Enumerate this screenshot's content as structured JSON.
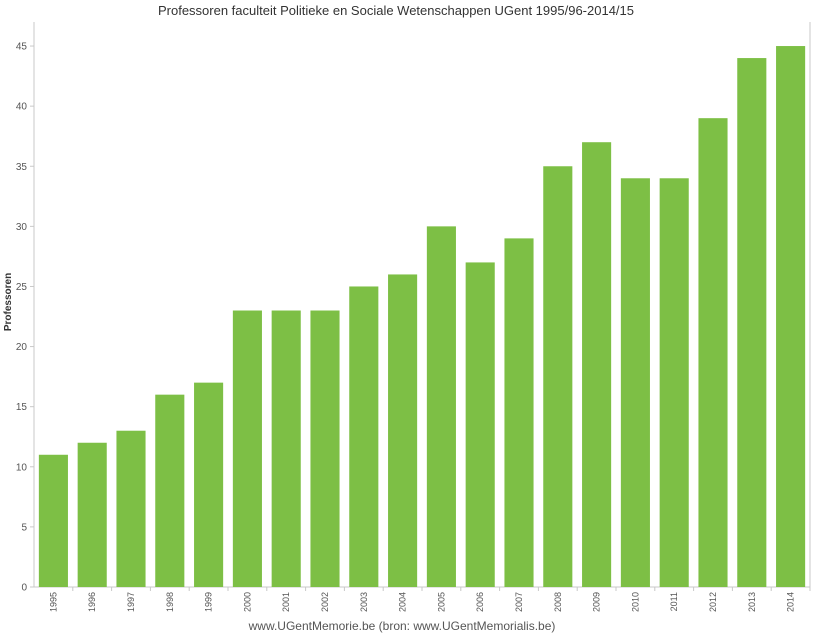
{
  "chart_data": {
    "type": "bar",
    "title": "Professoren faculteit Politieke en Sociale Wetenschappen UGent 1995/96-2014/15",
    "ylabel": "Professoren",
    "xlabel": "",
    "categories": [
      "1995",
      "1996",
      "1997",
      "1998",
      "1999",
      "2000",
      "2001",
      "2002",
      "2003",
      "2004",
      "2005",
      "2006",
      "2007",
      "2008",
      "2009",
      "2010",
      "2011",
      "2012",
      "2013",
      "2014"
    ],
    "values": [
      11,
      12,
      13,
      16,
      17,
      23,
      23,
      23,
      25,
      26,
      30,
      27,
      29,
      35,
      37,
      34,
      34,
      39,
      44,
      45
    ],
    "ylim": [
      0,
      47
    ],
    "yticks": [
      0,
      5,
      10,
      15,
      20,
      25,
      30,
      35,
      40,
      45
    ],
    "grid": false,
    "bar_color": "#7dbf45"
  },
  "footer": "www.UGentMemorie.be (bron: www.UGentMemorialis.be)"
}
